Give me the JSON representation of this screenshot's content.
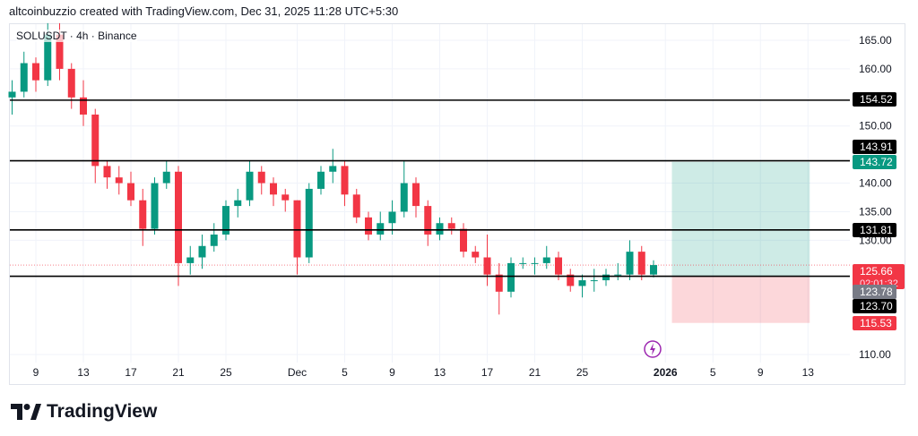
{
  "header": {
    "attribution": "altcoinbuzzio created with TradingView.com, Dec 31, 2025 11:28 UTC+5:30"
  },
  "symbol_line": "SOLUSDT · 4h · Binance",
  "logo_text": "TradingView",
  "colors": {
    "up": "#089981",
    "down": "#f23645",
    "line": "#000000",
    "target_zone": "#089981",
    "stop_zone": "#f23645",
    "event_icon": "#9c27b0"
  },
  "chart_data": {
    "type": "candlestick",
    "title": "",
    "ylim": [
      107,
      168
    ],
    "y_ticks": [
      "110.00",
      "130.00",
      "135.00",
      "140.00",
      "150.00",
      "160.00",
      "165.00"
    ],
    "x_ticks": [
      {
        "label": "9",
        "date": "2025-11-09"
      },
      {
        "label": "13",
        "date": "2025-11-13"
      },
      {
        "label": "17",
        "date": "2025-11-17"
      },
      {
        "label": "21",
        "date": "2025-11-21"
      },
      {
        "label": "25",
        "date": "2025-11-25"
      },
      {
        "label": "Dec",
        "date": "2025-12-01"
      },
      {
        "label": "5",
        "date": "2025-12-05"
      },
      {
        "label": "9",
        "date": "2025-12-09"
      },
      {
        "label": "13",
        "date": "2025-12-13"
      },
      {
        "label": "17",
        "date": "2025-12-17"
      },
      {
        "label": "21",
        "date": "2025-12-21"
      },
      {
        "label": "25",
        "date": "2025-12-25"
      },
      {
        "label": "2026",
        "date": "2026-01-01"
      },
      {
        "label": "5",
        "date": "2026-01-05"
      },
      {
        "label": "9",
        "date": "2026-01-09"
      },
      {
        "label": "13",
        "date": "2026-01-13"
      }
    ],
    "x_range": [
      "2025-11-06",
      "2026-01-16"
    ],
    "candles_daily": [
      [
        "2025-11-07",
        155,
        158,
        152,
        156
      ],
      [
        "2025-11-08",
        156,
        163,
        155,
        161
      ],
      [
        "2025-11-09",
        161,
        162,
        156,
        158
      ],
      [
        "2025-11-10",
        158,
        168,
        157,
        166
      ],
      [
        "2025-11-11",
        166,
        168,
        158,
        160
      ],
      [
        "2025-11-12",
        160,
        161,
        153,
        155
      ],
      [
        "2025-11-13",
        155,
        158,
        150,
        152
      ],
      [
        "2025-11-14",
        152,
        153,
        140,
        143
      ],
      [
        "2025-11-15",
        143,
        144,
        139,
        141
      ],
      [
        "2025-11-16",
        141,
        143,
        138,
        140
      ],
      [
        "2025-11-17",
        140,
        142,
        136,
        137
      ],
      [
        "2025-11-18",
        137,
        139,
        129,
        132
      ],
      [
        "2025-11-19",
        132,
        141,
        131,
        140
      ],
      [
        "2025-11-20",
        140,
        144,
        139,
        142
      ],
      [
        "2025-11-21",
        142,
        143,
        122,
        126
      ],
      [
        "2025-11-22",
        126,
        129,
        124,
        127
      ],
      [
        "2025-11-23",
        127,
        131,
        125,
        129
      ],
      [
        "2025-11-24",
        129,
        133,
        128,
        131
      ],
      [
        "2025-11-25",
        131,
        137,
        130,
        136
      ],
      [
        "2025-11-26",
        136,
        139,
        134,
        137
      ],
      [
        "2025-11-27",
        137,
        144,
        136,
        142
      ],
      [
        "2025-11-28",
        142,
        143,
        138,
        140
      ],
      [
        "2025-11-29",
        140,
        141,
        136,
        138
      ],
      [
        "2025-11-30",
        138,
        139,
        135,
        137
      ],
      [
        "2025-12-01",
        137,
        137,
        124,
        127
      ],
      [
        "2025-12-02",
        127,
        140,
        126,
        139
      ],
      [
        "2025-12-03",
        139,
        143,
        138,
        142
      ],
      [
        "2025-12-04",
        142,
        146,
        140,
        143
      ],
      [
        "2025-12-05",
        143,
        144,
        136,
        138
      ],
      [
        "2025-12-06",
        138,
        139,
        133,
        134
      ],
      [
        "2025-12-07",
        134,
        135,
        130,
        131
      ],
      [
        "2025-12-08",
        131,
        135,
        130,
        133
      ],
      [
        "2025-12-09",
        133,
        137,
        131,
        135
      ],
      [
        "2025-12-10",
        135,
        144,
        134,
        140
      ],
      [
        "2025-12-11",
        140,
        141,
        134,
        136
      ],
      [
        "2025-12-12",
        136,
        137,
        129,
        131
      ],
      [
        "2025-12-13",
        131,
        134,
        130,
        133
      ],
      [
        "2025-12-14",
        133,
        134,
        131,
        132
      ],
      [
        "2025-12-15",
        132,
        133,
        127,
        128
      ],
      [
        "2025-12-16",
        128,
        129,
        126,
        127
      ],
      [
        "2025-12-17",
        127,
        131,
        122,
        124
      ],
      [
        "2025-12-18",
        124,
        126,
        117,
        121
      ],
      [
        "2025-12-19",
        121,
        127,
        120,
        126
      ],
      [
        "2025-12-20",
        126,
        127,
        125,
        126
      ],
      [
        "2025-12-21",
        126,
        127,
        124,
        126
      ],
      [
        "2025-12-22",
        126,
        129,
        125,
        127
      ],
      [
        "2025-12-23",
        127,
        128,
        123,
        124
      ],
      [
        "2025-12-24",
        124,
        125,
        121,
        122
      ],
      [
        "2025-12-25",
        122,
        124,
        120,
        123
      ],
      [
        "2025-12-26",
        123,
        125,
        121,
        123
      ],
      [
        "2025-12-27",
        123,
        125,
        122,
        124
      ],
      [
        "2025-12-28",
        124,
        126,
        123,
        124
      ],
      [
        "2025-12-29",
        124,
        130,
        123,
        128
      ],
      [
        "2025-12-30",
        128,
        129,
        123,
        124
      ],
      [
        "2025-12-31",
        124,
        126.5,
        123.5,
        125.66
      ]
    ],
    "horizontal_levels": [
      154.52,
      143.91,
      131.81,
      123.7
    ],
    "position": {
      "start": "2026-01-02",
      "end": "2026-01-13",
      "target": 143.72,
      "entry": 123.78,
      "stop": 115.53
    },
    "price_labels": [
      {
        "value": 154.52,
        "text": "154.52",
        "kind": "level"
      },
      {
        "value": 143.91,
        "text": "143.91",
        "kind": "level"
      },
      {
        "value": 143.72,
        "text": "143.72",
        "kind": "target"
      },
      {
        "value": 131.81,
        "text": "131.81",
        "kind": "level"
      },
      {
        "value": 125.66,
        "text": "125.66",
        "sub": "02:01:32",
        "kind": "last"
      },
      {
        "value": 123.78,
        "text": "123.78",
        "kind": "entry"
      },
      {
        "value": 123.7,
        "text": "123.70",
        "kind": "level"
      },
      {
        "value": 115.53,
        "text": "115.53",
        "kind": "stop"
      }
    ],
    "last_price": 125.66,
    "event_icon": {
      "date": "2025-12-31",
      "icon": "lightning-icon"
    }
  }
}
